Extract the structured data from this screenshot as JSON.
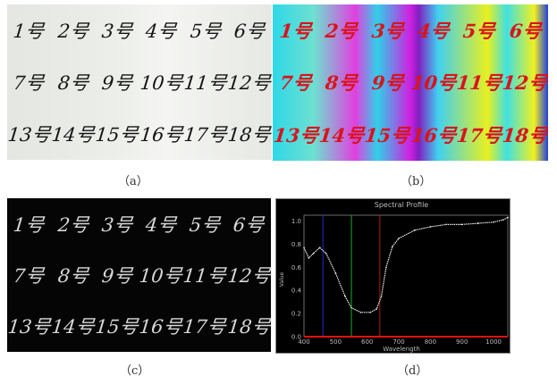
{
  "labels": [
    "1号",
    "2号",
    "3号",
    "4号",
    "5号",
    "6号",
    "7号",
    "8号",
    "9号",
    "10号",
    "11号",
    "12号",
    "13号",
    "14号",
    "15号",
    "16号",
    "17号",
    "18号"
  ],
  "captions": {
    "a": "（a）",
    "b": "（b）",
    "c": "（c）",
    "d": "（d）"
  },
  "chart_data": {
    "type": "line",
    "title": "Spectral Profile",
    "xlabel": "Wavelength",
    "ylabel": "Value",
    "xlim": [
      400,
      1045
    ],
    "ylim": [
      0,
      1.05
    ],
    "xticks": [
      400,
      500,
      600,
      700,
      800,
      900,
      1000
    ],
    "yticks": [
      "0.0",
      "0.2",
      "0.4",
      "0.6",
      "0.8",
      "1.0"
    ],
    "x": [
      400,
      415,
      430,
      450,
      470,
      500,
      530,
      550,
      580,
      610,
      630,
      645,
      660,
      680,
      700,
      750,
      800,
      850,
      900,
      950,
      1000,
      1030,
      1045
    ],
    "y": [
      0.77,
      0.68,
      0.72,
      0.77,
      0.72,
      0.55,
      0.35,
      0.25,
      0.21,
      0.21,
      0.24,
      0.35,
      0.6,
      0.78,
      0.85,
      0.92,
      0.95,
      0.97,
      0.97,
      0.98,
      0.99,
      1.01,
      1.03
    ],
    "markers": [
      {
        "x": 460,
        "color": "#1a2fc8"
      },
      {
        "x": 550,
        "color": "#1faa2a"
      },
      {
        "x": 640,
        "color": "#b01818"
      }
    ],
    "baseline_color": "#e01010",
    "curve_color": "#e8e8e8",
    "grid": false
  }
}
